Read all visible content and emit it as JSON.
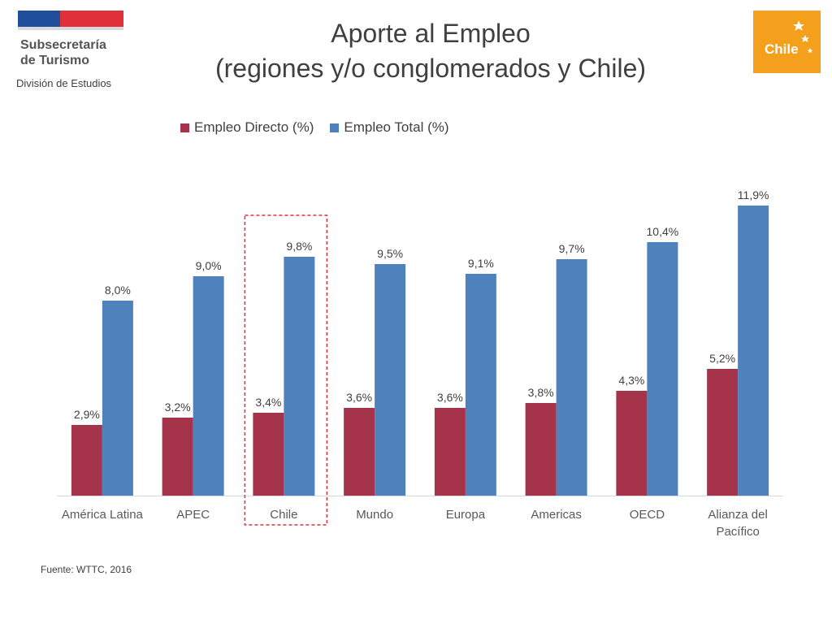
{
  "header": {
    "org_line1": "Subsecretaría",
    "org_line2": "de Turismo",
    "division": "División de Estudios",
    "brand": "Chile"
  },
  "chart_data": {
    "type": "bar",
    "title_line1": "Aporte al Empleo",
    "title_line2": "(regiones y/o conglomerados y Chile)",
    "categories": [
      "América Latina",
      "APEC",
      "Chile",
      "Mundo",
      "Europa",
      "Americas",
      "OECD",
      "Alianza del Pacífico"
    ],
    "series": [
      {
        "name": "Empleo Directo (%)",
        "color": "#a5344b",
        "values": [
          2.9,
          3.2,
          3.4,
          3.6,
          3.6,
          3.8,
          4.3,
          5.2
        ],
        "labels": [
          "2,9%",
          "3,2%",
          "3,4%",
          "3,6%",
          "3,6%",
          "3,8%",
          "4,3%",
          "5,2%"
        ]
      },
      {
        "name": "Empleo Total (%)",
        "color": "#4f81bd",
        "values": [
          8.0,
          9.0,
          9.8,
          9.5,
          9.1,
          9.7,
          10.4,
          11.9
        ],
        "labels": [
          "8,0%",
          "9,0%",
          "9,8%",
          "9,5%",
          "9,1%",
          "9,7%",
          "10,4%",
          "11,9%"
        ]
      }
    ],
    "ylim": [
      0,
      12
    ],
    "grid": false,
    "legend_position": "top",
    "highlight_category": "Chile",
    "highlight_color": "#e0303a"
  },
  "footer": {
    "source": "Fuente: WTTC, 2016"
  }
}
